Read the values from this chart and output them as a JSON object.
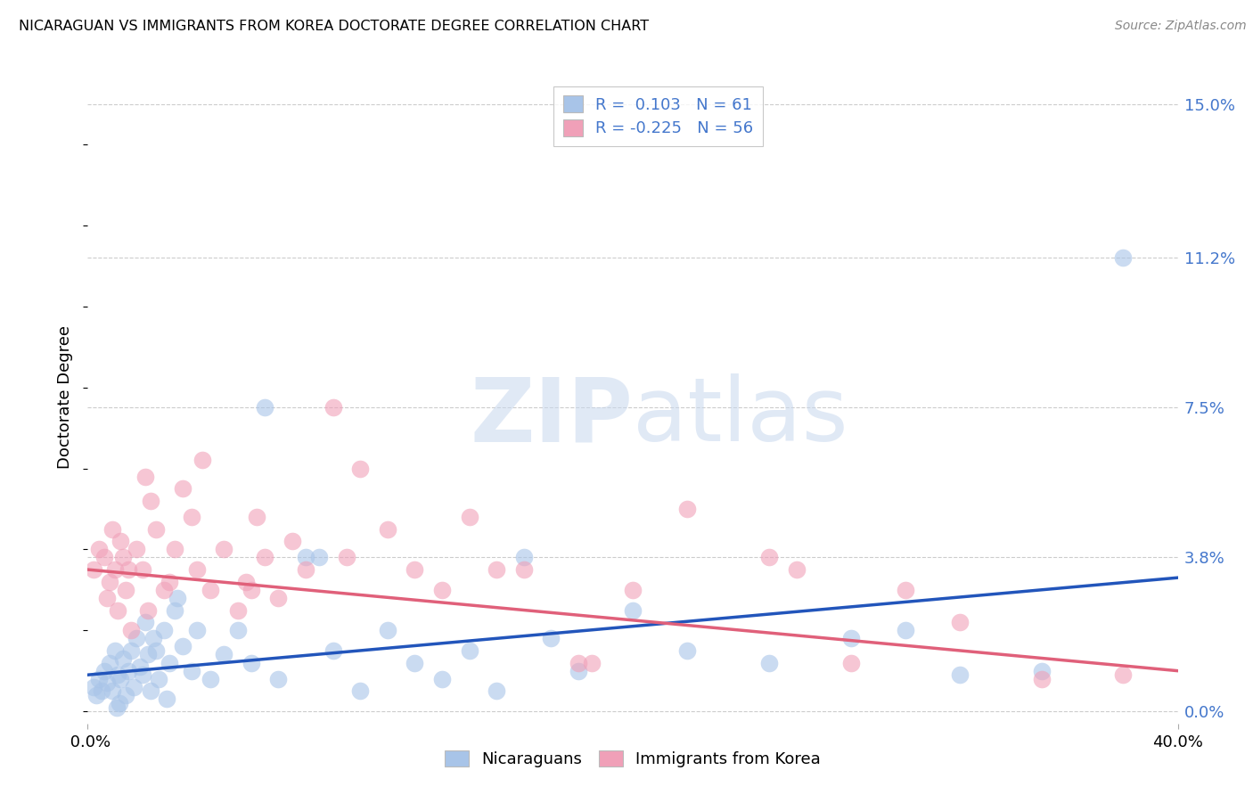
{
  "title": "NICARAGUAN VS IMMIGRANTS FROM KOREA DOCTORATE DEGREE CORRELATION CHART",
  "source": "Source: ZipAtlas.com",
  "ylabel": "Doctorate Degree",
  "ytick_labels": [
    "0.0%",
    "3.8%",
    "7.5%",
    "11.2%",
    "15.0%"
  ],
  "ytick_vals": [
    0.0,
    3.8,
    7.5,
    11.2,
    15.0
  ],
  "xlim": [
    0.0,
    40.0
  ],
  "ylim": [
    -0.3,
    15.8
  ],
  "blue_color": "#a8c4e8",
  "pink_color": "#f0a0b8",
  "blue_line_color": "#2255bb",
  "pink_line_color": "#e0607a",
  "label_color": "#4477cc",
  "r_blue": 0.103,
  "n_blue": 61,
  "r_pink": -0.225,
  "n_pink": 56,
  "watermark_zip": "ZIP",
  "watermark_atlas": "atlas",
  "blue_line_x0": 0.0,
  "blue_line_y0": 0.9,
  "blue_line_x1": 40.0,
  "blue_line_y1": 3.3,
  "pink_line_x0": 0.0,
  "pink_line_y0": 3.5,
  "pink_line_x1": 40.0,
  "pink_line_y1": 1.0,
  "blue_scatter_x": [
    0.2,
    0.3,
    0.4,
    0.5,
    0.6,
    0.7,
    0.8,
    0.9,
    1.0,
    1.1,
    1.2,
    1.3,
    1.4,
    1.5,
    1.6,
    1.7,
    1.8,
    1.9,
    2.0,
    2.1,
    2.2,
    2.3,
    2.4,
    2.5,
    2.6,
    2.8,
    3.0,
    3.2,
    3.5,
    3.8,
    4.0,
    4.5,
    5.0,
    5.5,
    6.0,
    7.0,
    8.0,
    9.0,
    10.0,
    11.0,
    12.0,
    13.0,
    14.0,
    15.0,
    16.0,
    17.0,
    18.0,
    20.0,
    22.0,
    25.0,
    28.0,
    30.0,
    32.0,
    35.0,
    38.0,
    3.3,
    6.5,
    8.5,
    2.9,
    1.15,
    1.05
  ],
  "blue_scatter_y": [
    0.6,
    0.4,
    0.8,
    0.5,
    1.0,
    0.7,
    1.2,
    0.5,
    1.5,
    0.9,
    0.8,
    1.3,
    0.4,
    1.0,
    1.5,
    0.6,
    1.8,
    1.1,
    0.9,
    2.2,
    1.4,
    0.5,
    1.8,
    1.5,
    0.8,
    2.0,
    1.2,
    2.5,
    1.6,
    1.0,
    2.0,
    0.8,
    1.4,
    2.0,
    1.2,
    0.8,
    3.8,
    1.5,
    0.5,
    2.0,
    1.2,
    0.8,
    1.5,
    0.5,
    3.8,
    1.8,
    1.0,
    2.5,
    1.5,
    1.2,
    1.8,
    2.0,
    0.9,
    1.0,
    11.2,
    2.8,
    7.5,
    3.8,
    0.3,
    0.2,
    0.1
  ],
  "pink_scatter_x": [
    0.2,
    0.4,
    0.6,
    0.7,
    0.8,
    0.9,
    1.0,
    1.1,
    1.2,
    1.3,
    1.4,
    1.5,
    1.6,
    1.8,
    2.0,
    2.1,
    2.2,
    2.3,
    2.5,
    2.8,
    3.0,
    3.2,
    3.5,
    3.8,
    4.0,
    4.2,
    4.5,
    5.0,
    5.5,
    6.0,
    6.5,
    7.0,
    8.0,
    9.0,
    10.0,
    11.0,
    12.0,
    13.0,
    14.0,
    15.0,
    16.0,
    18.0,
    20.0,
    22.0,
    25.0,
    28.0,
    30.0,
    32.0,
    35.0,
    38.0,
    5.8,
    6.2,
    7.5,
    9.5,
    18.5,
    26.0
  ],
  "pink_scatter_y": [
    3.5,
    4.0,
    3.8,
    2.8,
    3.2,
    4.5,
    3.5,
    2.5,
    4.2,
    3.8,
    3.0,
    3.5,
    2.0,
    4.0,
    3.5,
    5.8,
    2.5,
    5.2,
    4.5,
    3.0,
    3.2,
    4.0,
    5.5,
    4.8,
    3.5,
    6.2,
    3.0,
    4.0,
    2.5,
    3.0,
    3.8,
    2.8,
    3.5,
    7.5,
    6.0,
    4.5,
    3.5,
    3.0,
    4.8,
    3.5,
    3.5,
    1.2,
    3.0,
    5.0,
    3.8,
    1.2,
    3.0,
    2.2,
    0.8,
    0.9,
    3.2,
    4.8,
    4.2,
    3.8,
    1.2,
    3.5
  ]
}
